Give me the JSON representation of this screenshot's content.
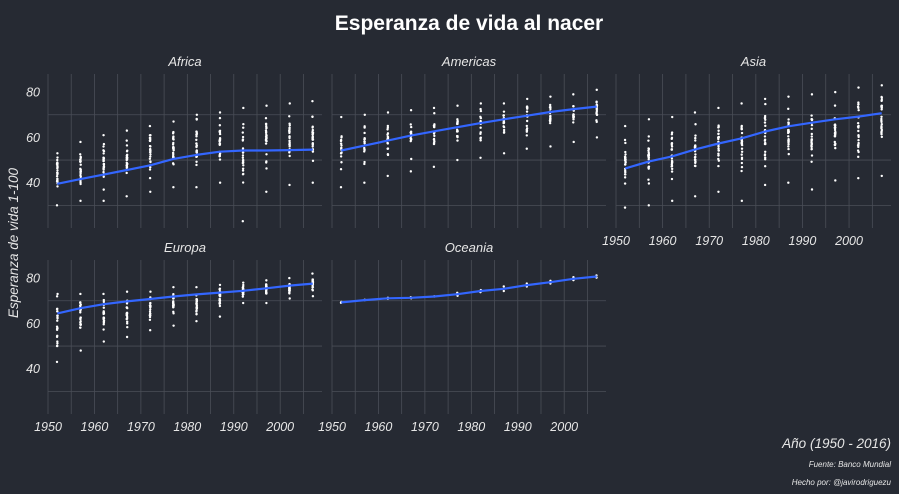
{
  "chart_data": {
    "type": "scatter",
    "title": "Esperanza de vida al nacer",
    "xlabel": "Año (1950 - 2016)",
    "ylabel": "Esperanza de vida 1-100",
    "caption": [
      "Fuente: Banco Mundial",
      "Hecho por: @javirodriguezu"
    ],
    "xlim": [
      1950,
      2009
    ],
    "ylim": [
      20,
      88
    ],
    "x_ticks": [
      1950,
      1960,
      1970,
      1980,
      1990,
      2000
    ],
    "y_ticks": [
      40,
      60,
      80
    ],
    "grid": true,
    "trend_color": "#3366ff",
    "point_color": "#ffffff",
    "years": [
      1952,
      1957,
      1962,
      1967,
      1972,
      1977,
      1982,
      1987,
      1992,
      1997,
      2002,
      2007
    ],
    "facets": [
      {
        "name": "Africa",
        "trend": [
          39.5,
          41.6,
          43.6,
          45.6,
          47.7,
          50.5,
          52.3,
          53.7,
          54.2,
          54.2,
          54.4,
          54.6
        ],
        "range": [
          [
            30,
            53
          ],
          [
            32,
            58
          ],
          [
            32,
            61
          ],
          [
            34,
            63
          ],
          [
            36,
            65
          ],
          [
            38,
            67
          ],
          [
            38,
            70
          ],
          [
            40,
            71
          ],
          [
            23,
            73
          ],
          [
            36,
            74
          ],
          [
            39,
            75
          ],
          [
            40,
            76
          ]
        ]
      },
      {
        "name": "Americas",
        "trend": [
          54.2,
          56.4,
          58.6,
          60.8,
          62.7,
          64.5,
          66.3,
          68.0,
          69.6,
          71.2,
          72.5,
          73.6
        ],
        "range": [
          [
            38,
            69
          ],
          [
            40,
            70
          ],
          [
            43,
            71
          ],
          [
            45,
            72
          ],
          [
            47,
            73
          ],
          [
            50,
            74
          ],
          [
            51,
            75
          ],
          [
            53,
            75
          ],
          [
            55,
            77
          ],
          [
            56,
            78
          ],
          [
            58,
            79
          ],
          [
            60,
            81
          ]
        ]
      },
      {
        "name": "Asia",
        "trend": [
          46.3,
          49.3,
          51.6,
          54.7,
          57.3,
          59.6,
          62.6,
          64.9,
          66.5,
          68.0,
          69.2,
          70.7
        ],
        "range": [
          [
            29,
            65
          ],
          [
            30,
            68
          ],
          [
            32,
            69
          ],
          [
            34,
            71
          ],
          [
            36,
            73
          ],
          [
            32,
            75
          ],
          [
            39,
            77
          ],
          [
            40,
            78
          ],
          [
            37,
            79
          ],
          [
            41,
            80
          ],
          [
            42,
            82
          ],
          [
            43,
            83
          ]
        ]
      },
      {
        "name": "Europa",
        "trend": [
          64.4,
          66.7,
          68.5,
          69.7,
          70.8,
          71.9,
          72.8,
          73.6,
          74.4,
          75.5,
          76.7,
          77.6
        ],
        "range": [
          [
            43,
            73
          ],
          [
            48,
            73
          ],
          [
            52,
            73
          ],
          [
            54,
            74
          ],
          [
            57,
            74
          ],
          [
            59,
            76
          ],
          [
            61,
            76
          ],
          [
            63,
            77
          ],
          [
            69,
            78
          ],
          [
            69,
            79
          ],
          [
            71,
            80
          ],
          [
            72,
            82
          ]
        ]
      },
      {
        "name": "Oceania",
        "trend": [
          69.3,
          70.3,
          71.1,
          71.3,
          71.9,
          72.9,
          74.3,
          75.3,
          76.9,
          78.2,
          79.7,
          80.7
        ],
        "range": [
          [
            69.1,
            69.5
          ],
          [
            70.3,
            70.4
          ],
          [
            70.9,
            71.3
          ],
          [
            71.1,
            71.5
          ],
          [
            71.9,
            71.9
          ],
          [
            72.2,
            73.5
          ],
          [
            73.8,
            74.7
          ],
          [
            74.3,
            76.3
          ],
          [
            76.3,
            77.6
          ],
          [
            77.6,
            78.8
          ],
          [
            79.1,
            80.4
          ],
          [
            80.2,
            81.2
          ]
        ]
      }
    ]
  }
}
